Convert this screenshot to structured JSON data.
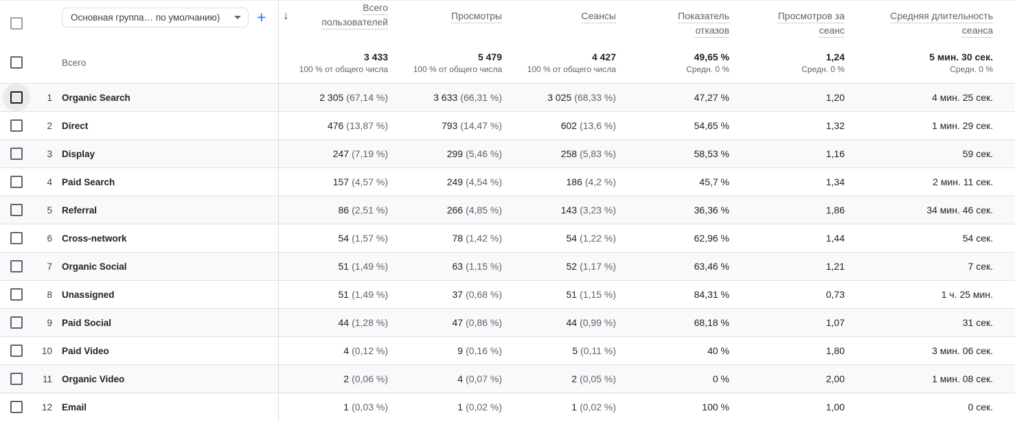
{
  "toolbar": {
    "dimension_dropdown_value": "Основная группа… по умолчанию)",
    "add_label": "+"
  },
  "table": {
    "sort_icon": "↓",
    "totals_label": "Всего",
    "columns": [
      {
        "label": "Всего пользователей",
        "total": "3 433",
        "total_sub": "100 % от общего числа"
      },
      {
        "label": "Просмотры",
        "total": "5 479",
        "total_sub": "100 % от общего числа"
      },
      {
        "label": "Сеансы",
        "total": "4 427",
        "total_sub": "100 % от общего числа"
      },
      {
        "label": "Показатель отказов",
        "total": "49,65 %",
        "total_sub": "Средн. 0 %"
      },
      {
        "label": "Просмотров за сеанс",
        "total": "1,24",
        "total_sub": "Средн. 0 %"
      },
      {
        "label": "Средняя длительность сеанса",
        "total": "5 мин. 30 сек.",
        "total_sub": "Средн. 0 %"
      }
    ],
    "rows": [
      {
        "index": "1",
        "channel": "Organic Search",
        "hovered": true,
        "users": "2 305",
        "users_pct": "(67,14 %)",
        "views": "3 633",
        "views_pct": "(66,31 %)",
        "sessions": "3 025",
        "sessions_pct": "(68,33 %)",
        "bounce_rate": "47,27 %",
        "views_per_session": "1,20",
        "avg_duration": "4 мин. 25 сек."
      },
      {
        "index": "2",
        "channel": "Direct",
        "hovered": false,
        "users": "476",
        "users_pct": "(13,87 %)",
        "views": "793",
        "views_pct": "(14,47 %)",
        "sessions": "602",
        "sessions_pct": "(13,6 %)",
        "bounce_rate": "54,65 %",
        "views_per_session": "1,32",
        "avg_duration": "1 мин. 29 сек."
      },
      {
        "index": "3",
        "channel": "Display",
        "hovered": false,
        "users": "247",
        "users_pct": "(7,19 %)",
        "views": "299",
        "views_pct": "(5,46 %)",
        "sessions": "258",
        "sessions_pct": "(5,83 %)",
        "bounce_rate": "58,53 %",
        "views_per_session": "1,16",
        "avg_duration": "59 сек."
      },
      {
        "index": "4",
        "channel": "Paid Search",
        "hovered": false,
        "users": "157",
        "users_pct": "(4,57 %)",
        "views": "249",
        "views_pct": "(4,54 %)",
        "sessions": "186",
        "sessions_pct": "(4,2 %)",
        "bounce_rate": "45,7 %",
        "views_per_session": "1,34",
        "avg_duration": "2 мин. 11 сек."
      },
      {
        "index": "5",
        "channel": "Referral",
        "hovered": false,
        "users": "86",
        "users_pct": "(2,51 %)",
        "views": "266",
        "views_pct": "(4,85 %)",
        "sessions": "143",
        "sessions_pct": "(3,23 %)",
        "bounce_rate": "36,36 %",
        "views_per_session": "1,86",
        "avg_duration": "34 мин. 46 сек."
      },
      {
        "index": "6",
        "channel": "Cross-network",
        "hovered": false,
        "users": "54",
        "users_pct": "(1,57 %)",
        "views": "78",
        "views_pct": "(1,42 %)",
        "sessions": "54",
        "sessions_pct": "(1,22 %)",
        "bounce_rate": "62,96 %",
        "views_per_session": "1,44",
        "avg_duration": "54 сек."
      },
      {
        "index": "7",
        "channel": "Organic Social",
        "hovered": false,
        "users": "51",
        "users_pct": "(1,49 %)",
        "views": "63",
        "views_pct": "(1,15 %)",
        "sessions": "52",
        "sessions_pct": "(1,17 %)",
        "bounce_rate": "63,46 %",
        "views_per_session": "1,21",
        "avg_duration": "7 сек."
      },
      {
        "index": "8",
        "channel": "Unassigned",
        "hovered": false,
        "users": "51",
        "users_pct": "(1,49 %)",
        "views": "37",
        "views_pct": "(0,68 %)",
        "sessions": "51",
        "sessions_pct": "(1,15 %)",
        "bounce_rate": "84,31 %",
        "views_per_session": "0,73",
        "avg_duration": "1 ч. 25 мин."
      },
      {
        "index": "9",
        "channel": "Paid Social",
        "hovered": false,
        "users": "44",
        "users_pct": "(1,28 %)",
        "views": "47",
        "views_pct": "(0,86 %)",
        "sessions": "44",
        "sessions_pct": "(0,99 %)",
        "bounce_rate": "68,18 %",
        "views_per_session": "1,07",
        "avg_duration": "31 сек."
      },
      {
        "index": "10",
        "channel": "Paid Video",
        "hovered": false,
        "users": "4",
        "users_pct": "(0,12 %)",
        "views": "9",
        "views_pct": "(0,16 %)",
        "sessions": "5",
        "sessions_pct": "(0,11 %)",
        "bounce_rate": "40 %",
        "views_per_session": "1,80",
        "avg_duration": "3 мин. 06 сек."
      },
      {
        "index": "11",
        "channel": "Organic Video",
        "hovered": false,
        "users": "2",
        "users_pct": "(0,06 %)",
        "views": "4",
        "views_pct": "(0,07 %)",
        "sessions": "2",
        "sessions_pct": "(0,05 %)",
        "bounce_rate": "0 %",
        "views_per_session": "2,00",
        "avg_duration": "1 мин. 08 сек."
      },
      {
        "index": "12",
        "channel": "Email",
        "hovered": false,
        "users": "1",
        "users_pct": "(0,03 %)",
        "views": "1",
        "views_pct": "(0,02 %)",
        "sessions": "1",
        "sessions_pct": "(0,02 %)",
        "bounce_rate": "100 %",
        "views_per_session": "1,00",
        "avg_duration": "0 сек."
      }
    ]
  },
  "colors": {
    "accent": "#1a73e8",
    "text_primary": "#202124",
    "text_secondary": "#5f6368",
    "row_alt_bg": "#f8f9fa",
    "border": "#e0e0e0"
  }
}
